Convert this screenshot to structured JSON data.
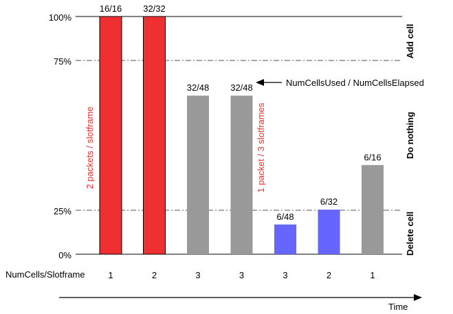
{
  "chart_data": {
    "type": "bar",
    "title": "",
    "x_axis_label": "NumCells/Slotframe",
    "time_label": "Time",
    "y_ticks": [
      "100%",
      "75%",
      "25%",
      "0%"
    ],
    "y_tick_values": [
      100,
      75,
      25,
      0
    ],
    "ylim": [
      0,
      100
    ],
    "bars": [
      {
        "num_cells": "1",
        "value": 100,
        "label": "16/16",
        "color": "#f03030"
      },
      {
        "num_cells": "2",
        "value": 100,
        "label": "32/32",
        "color": "#f03030"
      },
      {
        "num_cells": "3",
        "value": 66.7,
        "label": "32/48",
        "color": "#999999"
      },
      {
        "num_cells": "3",
        "value": 66.7,
        "label": "32/48",
        "color": "#999999"
      },
      {
        "num_cells": "3",
        "value": 12.5,
        "label": "6/48",
        "color": "#6666ff"
      },
      {
        "num_cells": "2",
        "value": 18.75,
        "label": "6/32",
        "color": "#6666ff"
      },
      {
        "num_cells": "1",
        "value": 37.5,
        "label": "6/16",
        "color": "#999999"
      }
    ],
    "zones": [
      "Add cell",
      "Do nothing",
      "Delete cell"
    ],
    "annotations": {
      "ratio_label": "NumCellsUsed / NumCellsElapsed",
      "rate_high": "2 packets / slotframe",
      "rate_low": "1 packet / 3 slotframes"
    },
    "annotation_color": "#f03030"
  }
}
